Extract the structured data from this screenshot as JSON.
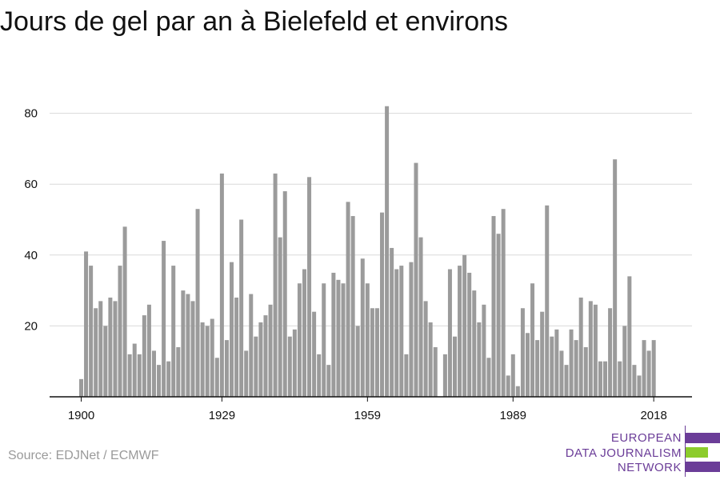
{
  "title": "Jours de gel par an à Bielefeld et environs",
  "source": "Source: EDJNet / ECMWF",
  "logo": {
    "lines": [
      "EUROPEAN",
      "DATA JOURNALISM",
      "NETWORK"
    ],
    "colors": [
      "#6b3d98",
      "#8ccc2c",
      "#6b3d98"
    ]
  },
  "chart_data": {
    "type": "bar",
    "title": "Jours de gel par an à Bielefeld et environs",
    "xlabel": "",
    "ylabel": "",
    "x_start": 1900,
    "x_ticks": [
      1900,
      1929,
      1959,
      1989,
      2018
    ],
    "y_ticks": [
      20,
      40,
      60,
      80
    ],
    "ylim": [
      0,
      85
    ],
    "grid": true,
    "bar_color": "#9b9b9b",
    "values": [
      5,
      41,
      37,
      25,
      27,
      20,
      28,
      27,
      37,
      48,
      12,
      15,
      12,
      23,
      26,
      13,
      9,
      44,
      10,
      37,
      14,
      30,
      29,
      27,
      53,
      21,
      20,
      22,
      11,
      63,
      16,
      38,
      28,
      50,
      13,
      29,
      17,
      21,
      23,
      26,
      63,
      45,
      58,
      17,
      19,
      32,
      36,
      62,
      24,
      12,
      32,
      9,
      35,
      33,
      32,
      55,
      51,
      20,
      39,
      32,
      25,
      25,
      52,
      82,
      42,
      36,
      37,
      12,
      38,
      66,
      45,
      27,
      21,
      14,
      0,
      12,
      36,
      17,
      37,
      40,
      35,
      30,
      21,
      26,
      11,
      51,
      46,
      53,
      6,
      12,
      3,
      25,
      18,
      32,
      16,
      24,
      54,
      17,
      19,
      13,
      9,
      19,
      16,
      28,
      14,
      27,
      26,
      10,
      10,
      25,
      67,
      10,
      20,
      34,
      9,
      6,
      16,
      13,
      16
    ]
  }
}
